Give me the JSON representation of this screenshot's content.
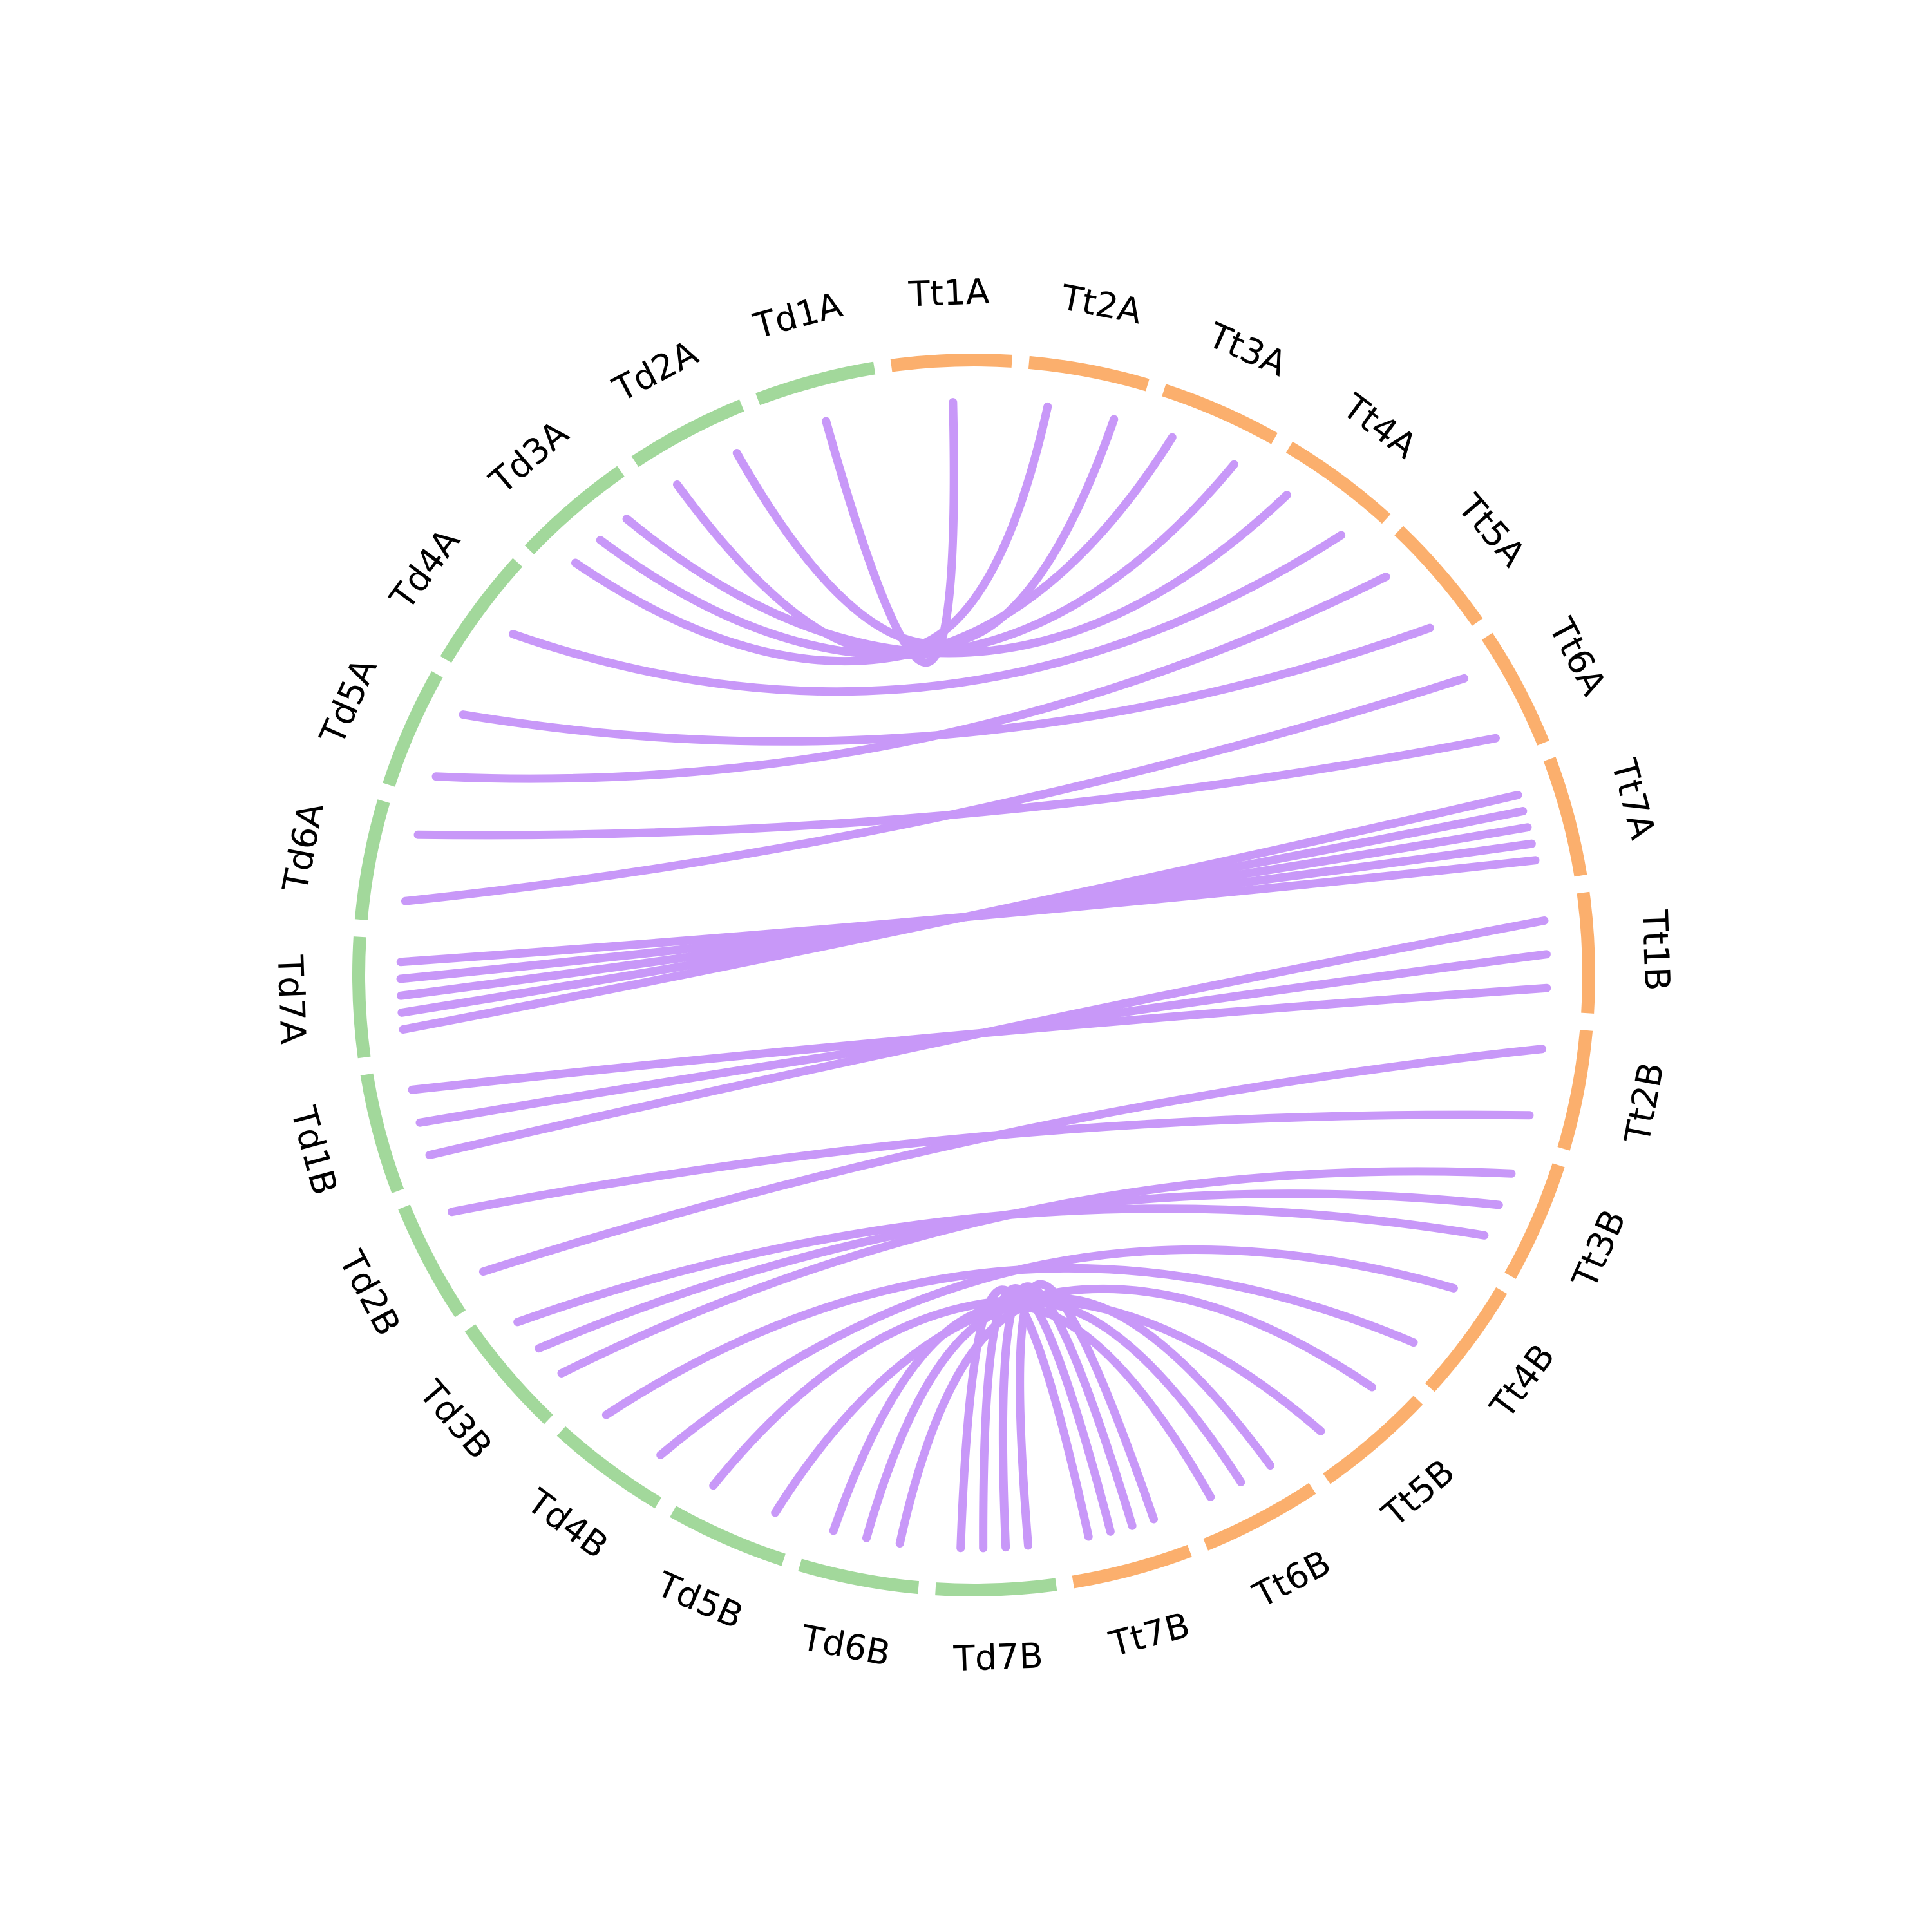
{
  "colors": {
    "genome_d": "#a2d89b",
    "genome_t": "#fbaf6d",
    "link": "#c898f8",
    "label": "#000000"
  },
  "segments": [
    {
      "label": "Tt1A",
      "genome": "t"
    },
    {
      "label": "Tt2A",
      "genome": "t"
    },
    {
      "label": "Tt3A",
      "genome": "t"
    },
    {
      "label": "Tt4A",
      "genome": "t"
    },
    {
      "label": "Tt5A",
      "genome": "t"
    },
    {
      "label": "Tt6A",
      "genome": "t"
    },
    {
      "label": "Tt7A",
      "genome": "t"
    },
    {
      "label": "Tt1B",
      "genome": "t"
    },
    {
      "label": "Tt2B",
      "genome": "t"
    },
    {
      "label": "Tt3B",
      "genome": "t"
    },
    {
      "label": "Tt4B",
      "genome": "t"
    },
    {
      "label": "Tt5B",
      "genome": "t"
    },
    {
      "label": "Tt6B",
      "genome": "t"
    },
    {
      "label": "Tt7B",
      "genome": "t"
    },
    {
      "label": "Td7B",
      "genome": "d"
    },
    {
      "label": "Td6B",
      "genome": "d"
    },
    {
      "label": "Td5B",
      "genome": "d"
    },
    {
      "label": "Td4B",
      "genome": "d"
    },
    {
      "label": "Td3B",
      "genome": "d"
    },
    {
      "label": "Td2B",
      "genome": "d"
    },
    {
      "label": "Td1B",
      "genome": "d"
    },
    {
      "label": "Td7A",
      "genome": "d"
    },
    {
      "label": "Td6A",
      "genome": "d"
    },
    {
      "label": "Td5A",
      "genome": "d"
    },
    {
      "label": "Td4A",
      "genome": "d"
    },
    {
      "label": "Td3A",
      "genome": "d"
    },
    {
      "label": "Td2A",
      "genome": "d"
    },
    {
      "label": "Td1A",
      "genome": "d"
    }
  ],
  "links": [
    [
      "Td1A",
      "Tt1A"
    ],
    [
      "Td2A",
      "Tt2A"
    ],
    [
      "Td2A",
      "Tt2A"
    ],
    [
      "Td3A",
      "Tt3A"
    ],
    [
      "Td3A",
      "Tt3A"
    ],
    [
      "Td3A",
      "Tt4A"
    ],
    [
      "Td4A",
      "Tt4A"
    ],
    [
      "Td5A",
      "Tt5A"
    ],
    [
      "Td5A",
      "Tt5A"
    ],
    [
      "Td6A",
      "Tt6A"
    ],
    [
      "Td6A",
      "Tt6A"
    ],
    [
      "Td7A",
      "Tt7A"
    ],
    [
      "Td7A",
      "Tt7A"
    ],
    [
      "Td7A",
      "Tt7A"
    ],
    [
      "Td7A",
      "Tt7A"
    ],
    [
      "Td7A",
      "Tt7A"
    ],
    [
      "Td1B",
      "Tt1B"
    ],
    [
      "Td1B",
      "Tt1B"
    ],
    [
      "Td1B",
      "Tt1B"
    ],
    [
      "Td2B",
      "Tt2B"
    ],
    [
      "Td2B",
      "Tt2B"
    ],
    [
      "Td3B",
      "Tt3B"
    ],
    [
      "Td3B",
      "Tt3B"
    ],
    [
      "Td3B",
      "Tt3B"
    ],
    [
      "Td4B",
      "Tt4B"
    ],
    [
      "Td4B",
      "Tt4B"
    ],
    [
      "Td5B",
      "Tt5B"
    ],
    [
      "Td5B",
      "Tt5B"
    ],
    [
      "Td6B",
      "Tt6B"
    ],
    [
      "Td6B",
      "Tt6B"
    ],
    [
      "Td6B",
      "Tt6B"
    ],
    [
      "Td7B",
      "Tt7B"
    ],
    [
      "Td7B",
      "Tt7B"
    ],
    [
      "Td7B",
      "Tt7B"
    ],
    [
      "Td7B",
      "Tt7B"
    ]
  ]
}
